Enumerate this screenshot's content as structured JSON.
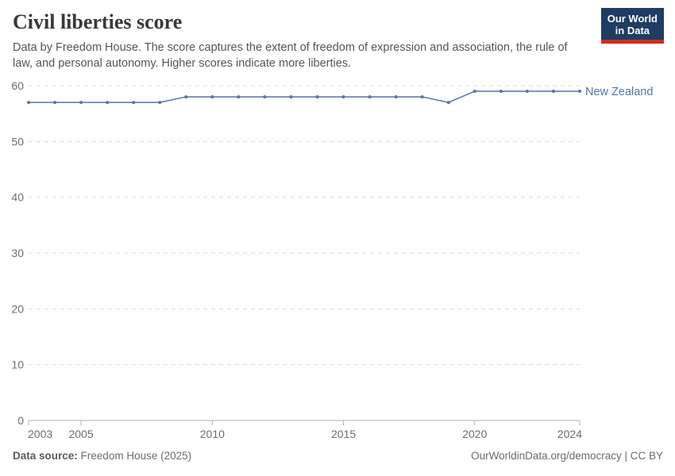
{
  "header": {
    "title": "Civil liberties score",
    "subtitle": "Data by Freedom House. The score captures the extent of freedom of expression and association, the rule of law, and personal autonomy. Higher scores indicate more liberties.",
    "logo": {
      "line1": "Our World",
      "line2": "in Data",
      "bg_color": "#1d3d63",
      "accent_color": "#cf2e22"
    }
  },
  "chart_data": {
    "type": "line",
    "title": "Civil liberties score",
    "x": [
      2003,
      2004,
      2005,
      2006,
      2007,
      2008,
      2009,
      2010,
      2011,
      2012,
      2013,
      2014,
      2015,
      2016,
      2017,
      2018,
      2019,
      2020,
      2021,
      2022,
      2023,
      2024
    ],
    "series": [
      {
        "name": "New Zealand",
        "color": "#5674a9",
        "values": [
          57,
          57,
          57,
          57,
          57,
          57,
          58,
          58,
          58,
          58,
          58,
          58,
          58,
          58,
          58,
          58,
          57,
          59,
          59,
          59,
          59,
          59
        ]
      }
    ],
    "xlabel": "",
    "ylabel": "",
    "ylim": [
      0,
      60
    ],
    "yticks": [
      0,
      10,
      20,
      30,
      40,
      50,
      60
    ],
    "xticks": [
      2003,
      2005,
      2010,
      2015,
      2020,
      2024
    ],
    "grid": "horizontal-dashed",
    "legend_position": "end-of-line",
    "colors": {
      "grid": "#dcdcdc",
      "axis": "#b3b3b3",
      "tick_label": "#6e6e6e"
    }
  },
  "footer": {
    "source_label": "Data source:",
    "source_value": "Freedom House (2025)",
    "attribution": "OurWorldinData.org/democracy | CC BY"
  }
}
